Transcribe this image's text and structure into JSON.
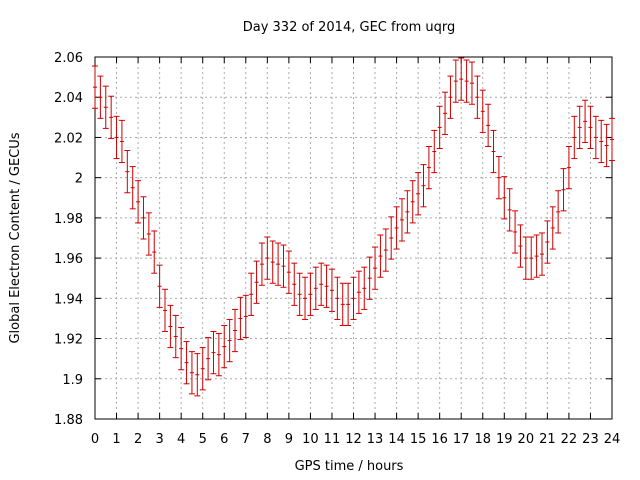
{
  "chart_data": {
    "type": "scatter",
    "title": "Day 332 of 2014, GEC from uqrg",
    "xlabel": "GPS time / hours",
    "ylabel": "Global Electron Content / GECUs",
    "xlim": [
      0,
      24
    ],
    "ylim": [
      1.88,
      2.06
    ],
    "xticks": [
      "0",
      "1",
      "2",
      "3",
      "4",
      "5",
      "6",
      "7",
      "8",
      "9",
      "10",
      "11",
      "12",
      "13",
      "14",
      "15",
      "16",
      "17",
      "18",
      "19",
      "20",
      "21",
      "22",
      "23",
      "24"
    ],
    "yticks": [
      "1.88",
      "1.9",
      "1.92",
      "1.94",
      "1.96",
      "1.98",
      "2",
      "2.02",
      "2.04",
      "2.06"
    ],
    "grid": true,
    "series": [
      {
        "color": "#cc0000",
        "error": 0.0105,
        "x": [
          0.0,
          0.25,
          0.5,
          0.75,
          1.0,
          1.25,
          1.5,
          1.75,
          2.0,
          2.25,
          2.5,
          2.75,
          3.0,
          3.25,
          3.5,
          3.75,
          4.0,
          4.25,
          4.5,
          4.75,
          5.0,
          5.25,
          5.5,
          5.75,
          6.0,
          6.25,
          6.5,
          6.75,
          7.0,
          7.25,
          7.5,
          7.75,
          8.0,
          8.25,
          8.5,
          8.75,
          9.0,
          9.25,
          9.5,
          9.75,
          10.0,
          10.25,
          10.5,
          10.75,
          11.0,
          11.25,
          11.5,
          11.75,
          12.0,
          12.25,
          12.5,
          12.75,
          13.0,
          13.25,
          13.5,
          13.75,
          14.0,
          14.25,
          14.5,
          14.75,
          15.0,
          15.25,
          15.5,
          15.75,
          16.0,
          16.25,
          16.5,
          16.75,
          17.0,
          17.25,
          17.5,
          17.75,
          18.0,
          18.25,
          18.5,
          18.75,
          19.0,
          19.25,
          19.5,
          19.75,
          20.0,
          20.25,
          20.5,
          20.75,
          21.0,
          21.25,
          21.5,
          21.75,
          22.0,
          22.25,
          22.5,
          22.75,
          23.0,
          23.25,
          23.5,
          23.75,
          24.0
        ],
        "y": [
          2.045,
          2.04,
          2.035,
          2.03,
          2.02,
          2.018,
          2.003,
          1.995,
          1.988,
          1.98,
          1.972,
          1.963,
          1.946,
          1.934,
          1.926,
          1.921,
          1.915,
          1.908,
          1.903,
          1.902,
          1.905,
          1.91,
          1.913,
          1.912,
          1.916,
          1.919,
          1.924,
          1.93,
          1.931,
          1.942,
          1.948,
          1.957,
          1.96,
          1.958,
          1.957,
          1.956,
          1.953,
          1.947,
          1.942,
          1.94,
          1.942,
          1.945,
          1.947,
          1.946,
          1.944,
          1.94,
          1.937,
          1.937,
          1.94,
          1.943,
          1.945,
          1.95,
          1.955,
          1.961,
          1.964,
          1.97,
          1.975,
          1.979,
          1.983,
          1.988,
          1.992,
          1.996,
          2.005,
          2.013,
          2.025,
          2.032,
          2.04,
          2.048,
          2.049,
          2.048,
          2.047,
          2.04,
          2.033,
          2.026,
          2.013,
          2.0,
          1.99,
          1.984,
          1.973,
          1.966,
          1.96,
          1.96,
          1.961,
          1.962,
          1.968,
          1.975,
          1.983,
          1.994,
          2.005,
          2.02,
          2.025,
          2.028,
          2.025,
          2.02,
          2.018,
          2.016,
          2.019
        ]
      }
    ]
  }
}
